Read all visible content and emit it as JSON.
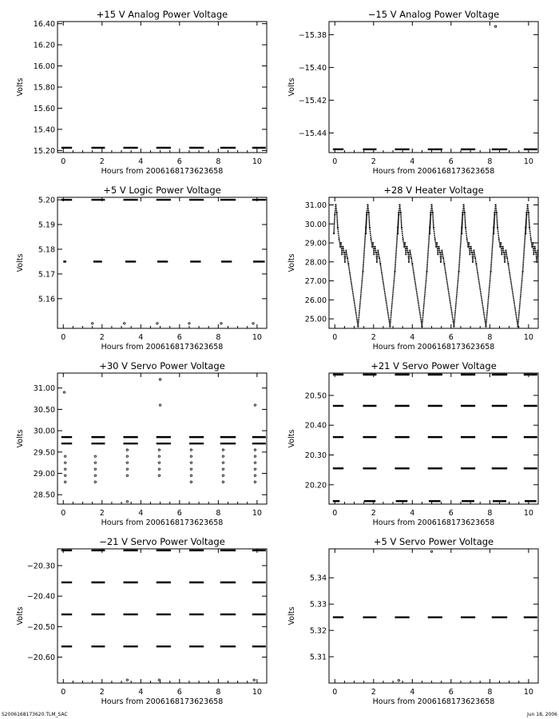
{
  "footer": {
    "left": "S2006168173620.TLM_SAC",
    "right": "Jun 18, 2006"
  },
  "chart_data": [
    {
      "type": "scatter",
      "title": "+15 V Analog Power Voltage",
      "xlabel": "Hours from 2006168173623658",
      "ylabel": "Volts",
      "xlim": [
        -0.3,
        10.5
      ],
      "xticks": [
        0,
        2,
        4,
        6,
        8,
        10
      ],
      "ylim": [
        15.18,
        16.42
      ],
      "yticks": [
        15.2,
        15.4,
        15.6,
        15.8,
        16.0,
        16.2,
        16.4
      ],
      "ydec": 2,
      "grid": false,
      "segments": [
        {
          "x0": -0.1,
          "x1": 0.45,
          "y": 15.226
        },
        {
          "x0": 1.45,
          "x1": 2.15,
          "y": 15.226
        },
        {
          "x0": 3.1,
          "x1": 3.85,
          "y": 15.226
        },
        {
          "x0": 4.8,
          "x1": 5.55,
          "y": 15.226
        },
        {
          "x0": 6.5,
          "x1": 7.25,
          "y": 15.226
        },
        {
          "x0": 8.1,
          "x1": 8.9,
          "y": 15.226
        },
        {
          "x0": 9.75,
          "x1": 10.45,
          "y": 15.226
        }
      ],
      "points": []
    },
    {
      "type": "scatter",
      "title": "−15 V Analog Power Voltage",
      "xlabel": "Hours from 2006168173623658",
      "ylabel": "Volts",
      "xlim": [
        -0.3,
        10.5
      ],
      "xticks": [
        0,
        2,
        4,
        6,
        8,
        10
      ],
      "ylim": [
        -15.452,
        -15.372
      ],
      "yticks": [
        -15.38,
        -15.4,
        -15.42,
        -15.44
      ],
      "ydec": 2,
      "grid": false,
      "segments": [
        {
          "x0": -0.1,
          "x1": 0.45,
          "y": -15.45
        },
        {
          "x0": 1.45,
          "x1": 2.15,
          "y": -15.45
        },
        {
          "x0": 3.1,
          "x1": 3.85,
          "y": -15.45
        },
        {
          "x0": 4.8,
          "x1": 5.55,
          "y": -15.45
        },
        {
          "x0": 6.5,
          "x1": 7.25,
          "y": -15.45
        },
        {
          "x0": 8.1,
          "x1": 8.9,
          "y": -15.45
        },
        {
          "x0": 9.75,
          "x1": 10.45,
          "y": -15.45
        }
      ],
      "points": [
        {
          "x": 8.3,
          "y": -15.375
        }
      ]
    },
    {
      "type": "scatter",
      "title": "+5 V Logic Power Voltage",
      "xlabel": "Hours from 2006168173623658",
      "ylabel": "Volts",
      "xlim": [
        -0.3,
        10.5
      ],
      "xticks": [
        0,
        2,
        4,
        6,
        8,
        10
      ],
      "ylim": [
        5.148,
        5.201
      ],
      "yticks": [
        5.16,
        5.17,
        5.18,
        5.19,
        5.2
      ],
      "ydec": 2,
      "grid": false,
      "segments": [
        {
          "x0": -0.1,
          "x1": 0.45,
          "y": 5.2
        },
        {
          "x0": 1.45,
          "x1": 2.15,
          "y": 5.2
        },
        {
          "x0": 3.1,
          "x1": 3.85,
          "y": 5.2
        },
        {
          "x0": 4.8,
          "x1": 5.55,
          "y": 5.2
        },
        {
          "x0": 6.5,
          "x1": 7.25,
          "y": 5.2
        },
        {
          "x0": 8.1,
          "x1": 8.9,
          "y": 5.2
        },
        {
          "x0": 9.75,
          "x1": 10.45,
          "y": 5.2
        },
        {
          "x0": 0.0,
          "x1": 0.15,
          "y": 5.175
        },
        {
          "x0": 1.55,
          "x1": 2.0,
          "y": 5.175
        },
        {
          "x0": 3.2,
          "x1": 3.75,
          "y": 5.175
        },
        {
          "x0": 4.85,
          "x1": 5.4,
          "y": 5.175
        },
        {
          "x0": 6.55,
          "x1": 7.1,
          "y": 5.175
        },
        {
          "x0": 8.15,
          "x1": 8.7,
          "y": 5.175
        },
        {
          "x0": 9.8,
          "x1": 10.4,
          "y": 5.175
        }
      ],
      "points": [
        {
          "x": 1.5,
          "y": 5.15
        },
        {
          "x": 3.15,
          "y": 5.15
        },
        {
          "x": 4.85,
          "y": 5.15
        },
        {
          "x": 6.5,
          "y": 5.15
        },
        {
          "x": 8.15,
          "y": 5.15
        },
        {
          "x": 9.8,
          "y": 5.15
        }
      ]
    },
    {
      "type": "line",
      "title": "+28 V Heater Voltage",
      "xlabel": "Hours from 2006168173623658",
      "ylabel": "Volts",
      "xlim": [
        -0.3,
        10.5
      ],
      "xticks": [
        0,
        2,
        4,
        6,
        8,
        10
      ],
      "ylim": [
        24.5,
        31.4
      ],
      "yticks": [
        25.0,
        26.0,
        27.0,
        28.0,
        29.0,
        30.0,
        31.0
      ],
      "ydec": 2,
      "grid": false,
      "segments": [],
      "points": [],
      "waveform": {
        "cycle_starts": [
          0.0,
          1.65,
          3.3,
          4.95,
          6.6,
          8.25,
          9.9
        ],
        "shape": [
          [
            -0.05,
            29.5
          ],
          [
            0.0,
            30.5
          ],
          [
            0.05,
            31.0
          ],
          [
            0.1,
            30.6
          ],
          [
            0.15,
            29.8
          ],
          [
            0.22,
            29.2
          ],
          [
            0.28,
            28.8
          ],
          [
            0.32,
            29.0
          ],
          [
            0.37,
            28.4
          ],
          [
            0.42,
            28.8
          ],
          [
            0.48,
            28.5
          ],
          [
            0.52,
            28.0
          ],
          [
            0.58,
            28.6
          ],
          [
            0.65,
            28.2
          ],
          [
            0.7,
            27.9
          ]
        ],
        "rise": [
          [
            1.2,
            24.6
          ],
          [
            1.45,
            27.5
          ],
          [
            1.6,
            29.8
          ],
          [
            1.65,
            30.6
          ]
        ],
        "first_rise": [
          [
            -0.1,
            29.0
          ],
          [
            -0.05,
            29.5
          ]
        ]
      }
    },
    {
      "type": "scatter",
      "title": "+30 V Servo Power Voltage",
      "xlabel": "Hours from 2006168173623658",
      "ylabel": "Volts",
      "xlim": [
        -0.3,
        10.5
      ],
      "xticks": [
        0,
        2,
        4,
        6,
        8,
        10
      ],
      "ylim": [
        28.28,
        31.35
      ],
      "yticks": [
        28.5,
        29.0,
        29.5,
        30.0,
        30.5,
        31.0
      ],
      "ydec": 2,
      "grid": false,
      "segments": [
        {
          "x0": -0.1,
          "x1": 0.45,
          "y": 29.85
        },
        {
          "x0": 1.45,
          "x1": 2.15,
          "y": 29.85
        },
        {
          "x0": 3.1,
          "x1": 3.85,
          "y": 29.85
        },
        {
          "x0": 4.8,
          "x1": 5.55,
          "y": 29.85
        },
        {
          "x0": 6.5,
          "x1": 7.25,
          "y": 29.85
        },
        {
          "x0": 8.1,
          "x1": 8.9,
          "y": 29.85
        },
        {
          "x0": 9.75,
          "x1": 10.45,
          "y": 29.85
        },
        {
          "x0": -0.1,
          "x1": 0.45,
          "y": 29.7
        },
        {
          "x0": 1.45,
          "x1": 2.15,
          "y": 29.7
        },
        {
          "x0": 3.1,
          "x1": 3.85,
          "y": 29.7
        },
        {
          "x0": 4.8,
          "x1": 5.55,
          "y": 29.7
        },
        {
          "x0": 6.5,
          "x1": 7.25,
          "y": 29.7
        },
        {
          "x0": 8.1,
          "x1": 8.9,
          "y": 29.7
        },
        {
          "x0": 9.75,
          "x1": 10.45,
          "y": 29.7
        }
      ],
      "points": [
        {
          "x": 0.05,
          "y": 30.9
        },
        {
          "x": 5.0,
          "y": 31.2
        },
        {
          "x": 5.0,
          "y": 30.6
        },
        {
          "x": 9.9,
          "y": 30.6
        },
        {
          "x": 3.3,
          "y": 28.34
        },
        {
          "x": 0.1,
          "y": 29.4
        },
        {
          "x": 0.1,
          "y": 29.25
        },
        {
          "x": 0.1,
          "y": 29.1
        },
        {
          "x": 0.1,
          "y": 28.95
        },
        {
          "x": 0.1,
          "y": 28.8
        },
        {
          "x": 1.65,
          "y": 29.4
        },
        {
          "x": 1.65,
          "y": 29.25
        },
        {
          "x": 1.65,
          "y": 29.1
        },
        {
          "x": 1.65,
          "y": 28.95
        },
        {
          "x": 1.65,
          "y": 28.8
        },
        {
          "x": 3.3,
          "y": 29.55
        },
        {
          "x": 3.3,
          "y": 29.4
        },
        {
          "x": 3.3,
          "y": 29.25
        },
        {
          "x": 3.3,
          "y": 29.1
        },
        {
          "x": 3.3,
          "y": 28.95
        },
        {
          "x": 4.95,
          "y": 29.55
        },
        {
          "x": 4.95,
          "y": 29.4
        },
        {
          "x": 4.95,
          "y": 29.25
        },
        {
          "x": 4.95,
          "y": 29.1
        },
        {
          "x": 4.95,
          "y": 28.95
        },
        {
          "x": 6.6,
          "y": 29.55
        },
        {
          "x": 6.6,
          "y": 29.4
        },
        {
          "x": 6.6,
          "y": 29.25
        },
        {
          "x": 6.6,
          "y": 29.1
        },
        {
          "x": 6.6,
          "y": 28.95
        },
        {
          "x": 6.6,
          "y": 28.8
        },
        {
          "x": 8.25,
          "y": 29.55
        },
        {
          "x": 8.25,
          "y": 29.4
        },
        {
          "x": 8.25,
          "y": 29.25
        },
        {
          "x": 8.25,
          "y": 29.1
        },
        {
          "x": 8.25,
          "y": 28.95
        },
        {
          "x": 8.25,
          "y": 28.8
        },
        {
          "x": 9.9,
          "y": 29.55
        },
        {
          "x": 9.9,
          "y": 29.4
        },
        {
          "x": 9.9,
          "y": 29.25
        },
        {
          "x": 9.9,
          "y": 29.1
        },
        {
          "x": 9.9,
          "y": 28.95
        },
        {
          "x": 9.9,
          "y": 28.8
        }
      ]
    },
    {
      "type": "scatter",
      "title": "+21 V Servo Power Voltage",
      "xlabel": "Hours from 2006168173623658",
      "ylabel": "Volts",
      "xlim": [
        -0.3,
        10.5
      ],
      "xticks": [
        0,
        2,
        4,
        6,
        8,
        10
      ],
      "ylim": [
        20.135,
        20.575
      ],
      "yticks": [
        20.2,
        20.3,
        20.4,
        20.5
      ],
      "ydec": 2,
      "grid": false,
      "segments": [
        {
          "x0": -0.1,
          "x1": 0.45,
          "y": 20.57
        },
        {
          "x0": 1.45,
          "x1": 2.15,
          "y": 20.57
        },
        {
          "x0": 3.1,
          "x1": 3.85,
          "y": 20.57
        },
        {
          "x0": 4.8,
          "x1": 5.55,
          "y": 20.57
        },
        {
          "x0": 6.5,
          "x1": 7.25,
          "y": 20.57
        },
        {
          "x0": 8.1,
          "x1": 8.9,
          "y": 20.57
        },
        {
          "x0": 9.75,
          "x1": 10.45,
          "y": 20.57
        },
        {
          "x0": -0.1,
          "x1": 0.45,
          "y": 20.465
        },
        {
          "x0": 1.45,
          "x1": 2.15,
          "y": 20.465
        },
        {
          "x0": 3.1,
          "x1": 3.85,
          "y": 20.465
        },
        {
          "x0": 4.8,
          "x1": 5.55,
          "y": 20.465
        },
        {
          "x0": 6.5,
          "x1": 7.25,
          "y": 20.465
        },
        {
          "x0": 8.1,
          "x1": 8.9,
          "y": 20.465
        },
        {
          "x0": 9.75,
          "x1": 10.45,
          "y": 20.465
        },
        {
          "x0": -0.1,
          "x1": 0.45,
          "y": 20.36
        },
        {
          "x0": 1.45,
          "x1": 2.15,
          "y": 20.36
        },
        {
          "x0": 3.1,
          "x1": 3.85,
          "y": 20.36
        },
        {
          "x0": 4.8,
          "x1": 5.55,
          "y": 20.36
        },
        {
          "x0": 6.5,
          "x1": 7.25,
          "y": 20.36
        },
        {
          "x0": 8.1,
          "x1": 8.9,
          "y": 20.36
        },
        {
          "x0": 9.75,
          "x1": 10.45,
          "y": 20.36
        },
        {
          "x0": -0.1,
          "x1": 0.45,
          "y": 20.255
        },
        {
          "x0": 1.45,
          "x1": 2.15,
          "y": 20.255
        },
        {
          "x0": 3.1,
          "x1": 3.85,
          "y": 20.255
        },
        {
          "x0": 4.8,
          "x1": 5.55,
          "y": 20.255
        },
        {
          "x0": 6.5,
          "x1": 7.25,
          "y": 20.255
        },
        {
          "x0": 8.1,
          "x1": 8.9,
          "y": 20.255
        },
        {
          "x0": 9.75,
          "x1": 10.45,
          "y": 20.255
        },
        {
          "x0": -0.1,
          "x1": 0.25,
          "y": 20.145
        },
        {
          "x0": 1.5,
          "x1": 2.1,
          "y": 20.145
        },
        {
          "x0": 3.15,
          "x1": 3.75,
          "y": 20.145
        },
        {
          "x0": 4.85,
          "x1": 5.45,
          "y": 20.145
        },
        {
          "x0": 6.55,
          "x1": 7.2,
          "y": 20.145
        },
        {
          "x0": 8.15,
          "x1": 8.85,
          "y": 20.145
        },
        {
          "x0": 9.8,
          "x1": 10.4,
          "y": 20.145
        }
      ],
      "points": []
    },
    {
      "type": "scatter",
      "title": "−21 V Servo Power Voltage",
      "xlabel": "Hours from 2006168173623658",
      "ylabel": "Volts",
      "xlim": [
        -0.3,
        10.5
      ],
      "xticks": [
        0,
        2,
        4,
        6,
        8,
        10
      ],
      "ylim": [
        -20.685,
        -20.245
      ],
      "yticks": [
        -20.3,
        -20.4,
        -20.5,
        -20.6
      ],
      "ydec": 2,
      "grid": false,
      "segments": [
        {
          "x0": -0.1,
          "x1": 0.45,
          "y": -20.25
        },
        {
          "x0": 1.45,
          "x1": 2.15,
          "y": -20.25
        },
        {
          "x0": 3.1,
          "x1": 3.85,
          "y": -20.25
        },
        {
          "x0": 4.8,
          "x1": 5.55,
          "y": -20.25
        },
        {
          "x0": 6.5,
          "x1": 7.25,
          "y": -20.25
        },
        {
          "x0": 8.1,
          "x1": 8.9,
          "y": -20.25
        },
        {
          "x0": 9.75,
          "x1": 10.45,
          "y": -20.25
        },
        {
          "x0": -0.1,
          "x1": 0.45,
          "y": -20.355
        },
        {
          "x0": 1.45,
          "x1": 2.15,
          "y": -20.355
        },
        {
          "x0": 3.1,
          "x1": 3.85,
          "y": -20.355
        },
        {
          "x0": 4.8,
          "x1": 5.55,
          "y": -20.355
        },
        {
          "x0": 6.5,
          "x1": 7.25,
          "y": -20.355
        },
        {
          "x0": 8.1,
          "x1": 8.9,
          "y": -20.355
        },
        {
          "x0": 9.75,
          "x1": 10.45,
          "y": -20.355
        },
        {
          "x0": -0.1,
          "x1": 0.45,
          "y": -20.46
        },
        {
          "x0": 1.45,
          "x1": 2.15,
          "y": -20.46
        },
        {
          "x0": 3.1,
          "x1": 3.85,
          "y": -20.46
        },
        {
          "x0": 4.8,
          "x1": 5.55,
          "y": -20.46
        },
        {
          "x0": 6.5,
          "x1": 7.25,
          "y": -20.46
        },
        {
          "x0": 8.1,
          "x1": 8.9,
          "y": -20.46
        },
        {
          "x0": 9.75,
          "x1": 10.45,
          "y": -20.46
        },
        {
          "x0": -0.1,
          "x1": 0.45,
          "y": -20.565
        },
        {
          "x0": 1.45,
          "x1": 2.15,
          "y": -20.565
        },
        {
          "x0": 3.1,
          "x1": 3.85,
          "y": -20.565
        },
        {
          "x0": 4.8,
          "x1": 5.55,
          "y": -20.565
        },
        {
          "x0": 6.5,
          "x1": 7.25,
          "y": -20.565
        },
        {
          "x0": 8.1,
          "x1": 8.9,
          "y": -20.565
        },
        {
          "x0": 9.75,
          "x1": 10.45,
          "y": -20.565
        }
      ],
      "points": [
        {
          "x": 3.3,
          "y": -20.675
        },
        {
          "x": 4.95,
          "y": -20.675
        },
        {
          "x": 9.85,
          "y": -20.675
        }
      ]
    },
    {
      "type": "scatter",
      "title": "+5 V Servo Power Voltage",
      "xlabel": "Hours from 2006168173623658",
      "ylabel": "Volts",
      "xlim": [
        -0.3,
        10.5
      ],
      "xticks": [
        0,
        2,
        4,
        6,
        8,
        10
      ],
      "ylim": [
        5.3,
        5.351
      ],
      "yticks": [
        5.31,
        5.32,
        5.33,
        5.34
      ],
      "ydec": 2,
      "grid": false,
      "segments": [
        {
          "x0": -0.1,
          "x1": 0.45,
          "y": 5.325
        },
        {
          "x0": 1.45,
          "x1": 2.15,
          "y": 5.325
        },
        {
          "x0": 3.1,
          "x1": 3.85,
          "y": 5.325
        },
        {
          "x0": 4.8,
          "x1": 5.55,
          "y": 5.325
        },
        {
          "x0": 6.5,
          "x1": 7.25,
          "y": 5.325
        },
        {
          "x0": 8.1,
          "x1": 8.9,
          "y": 5.325
        },
        {
          "x0": 9.75,
          "x1": 10.45,
          "y": 5.325
        }
      ],
      "points": [
        {
          "x": 5.0,
          "y": 5.35
        },
        {
          "x": 3.3,
          "y": 5.301
        }
      ]
    }
  ]
}
